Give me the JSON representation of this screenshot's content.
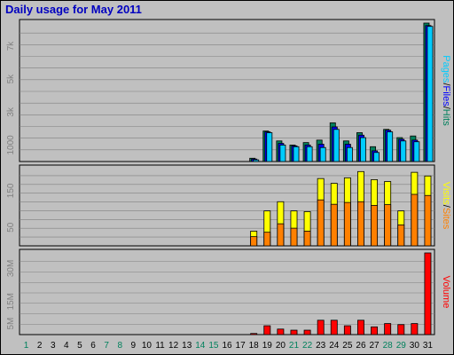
{
  "colors": {
    "background": "#c0c0c0",
    "plot": "#c0c0c0",
    "title": "#0000c0",
    "grid": "#808080",
    "weekday_label": "#000000",
    "weekend_label": "#00805c",
    "pages": "#00ccff",
    "files": "#0000ff",
    "hits": "#00805c",
    "visits": "#ffff00",
    "sites": "#ff8000",
    "volume": "#ff0000"
  },
  "chart_data": {
    "type": "bar",
    "title": "Daily usage for May 2011",
    "days": [
      "1",
      "2",
      "3",
      "4",
      "5",
      "6",
      "7",
      "8",
      "9",
      "10",
      "11",
      "12",
      "13",
      "14",
      "15",
      "16",
      "17",
      "18",
      "19",
      "20",
      "21",
      "22",
      "23",
      "24",
      "25",
      "26",
      "27",
      "28",
      "29",
      "30",
      "31"
    ],
    "weekend_days": [
      "1",
      "7",
      "8",
      "14",
      "15",
      "21",
      "22",
      "28",
      "29"
    ],
    "panels": [
      {
        "id": "hits-files-pages",
        "label_parts": [
          {
            "text": "Pages",
            "color_key": "pages"
          },
          {
            "text": "/",
            "color_key": "weekday_label"
          },
          {
            "text": "Files",
            "color_key": "files"
          },
          {
            "text": "/",
            "color_key": "weekday_label"
          },
          {
            "text": "Hits",
            "color_key": "hits"
          }
        ],
        "ylim": [
          0,
          8400
        ],
        "ticks": [
          {
            "value": 1000,
            "label": "1000"
          },
          {
            "value": 3000,
            "label": "3k"
          },
          {
            "value": 5000,
            "label": "5k"
          },
          {
            "value": 7000,
            "label": "7k"
          }
        ],
        "series": [
          {
            "name": "Hits",
            "color_key": "hits",
            "values": [
              0,
              0,
              0,
              0,
              0,
              0,
              0,
              0,
              0,
              0,
              0,
              0,
              0,
              0,
              0,
              0,
              0,
              200,
              1850,
              1250,
              1000,
              1150,
              1300,
              2350,
              1250,
              1750,
              900,
              1950,
              1450,
              1550,
              8400
            ]
          },
          {
            "name": "Files",
            "color_key": "files",
            "values": [
              0,
              0,
              0,
              0,
              0,
              0,
              0,
              0,
              0,
              0,
              0,
              0,
              0,
              0,
              0,
              0,
              0,
              150,
              1800,
              1100,
              950,
              1000,
              1050,
              2100,
              1050,
              1600,
              650,
              1900,
              1350,
              1300,
              8250
            ]
          },
          {
            "name": "Pages",
            "color_key": "pages",
            "values": [
              0,
              0,
              0,
              0,
              0,
              0,
              0,
              0,
              0,
              0,
              0,
              0,
              0,
              0,
              0,
              0,
              0,
              100,
              1750,
              1000,
              900,
              900,
              850,
              1950,
              850,
              1450,
              550,
              1800,
              1250,
              1200,
              8200
            ]
          }
        ]
      },
      {
        "id": "visits-sites",
        "label_parts": [
          {
            "text": "Visits",
            "color_key": "visits"
          },
          {
            "text": "/",
            "color_key": "weekday_label"
          },
          {
            "text": "Sites",
            "color_key": "sites"
          }
        ],
        "ylim": [
          0,
          210
        ],
        "ticks": [
          {
            "value": 50,
            "label": "50"
          },
          {
            "value": 150,
            "label": "150"
          }
        ],
        "series": [
          {
            "name": "Visits",
            "color_key": "visits",
            "values": [
              0,
              0,
              0,
              0,
              0,
              0,
              0,
              0,
              0,
              0,
              0,
              0,
              0,
              0,
              0,
              0,
              0,
              40,
              95,
              120,
              95,
              93,
              183,
              170,
              185,
              202,
              180,
              175,
              95,
              200,
              190
            ]
          },
          {
            "name": "Sites",
            "color_key": "sites",
            "values": [
              0,
              0,
              0,
              0,
              0,
              0,
              0,
              0,
              0,
              0,
              0,
              0,
              0,
              0,
              0,
              0,
              0,
              25,
              37,
              60,
              48,
              40,
              125,
              113,
              118,
              120,
              110,
              112,
              57,
              140,
              137
            ]
          }
        ]
      },
      {
        "id": "volume",
        "label_parts": [
          {
            "text": "Volume",
            "color_key": "volume"
          }
        ],
        "ylim": [
          0,
          37
        ],
        "ticks": [
          {
            "value": 5,
            "label": "5M"
          },
          {
            "value": 15,
            "label": "15M"
          },
          {
            "value": 30,
            "label": "30M"
          }
        ],
        "series": [
          {
            "name": "Volume",
            "color_key": "volume",
            "values": [
              0,
              0,
              0,
              0,
              0,
              0,
              0,
              0,
              0,
              0,
              0,
              0,
              0,
              0,
              0,
              0,
              0,
              0.5,
              4,
              2.5,
              2,
              2,
              6.5,
              6.5,
              4,
              6.5,
              3.5,
              5,
              4.5,
              5,
              37
            ]
          }
        ]
      }
    ]
  }
}
